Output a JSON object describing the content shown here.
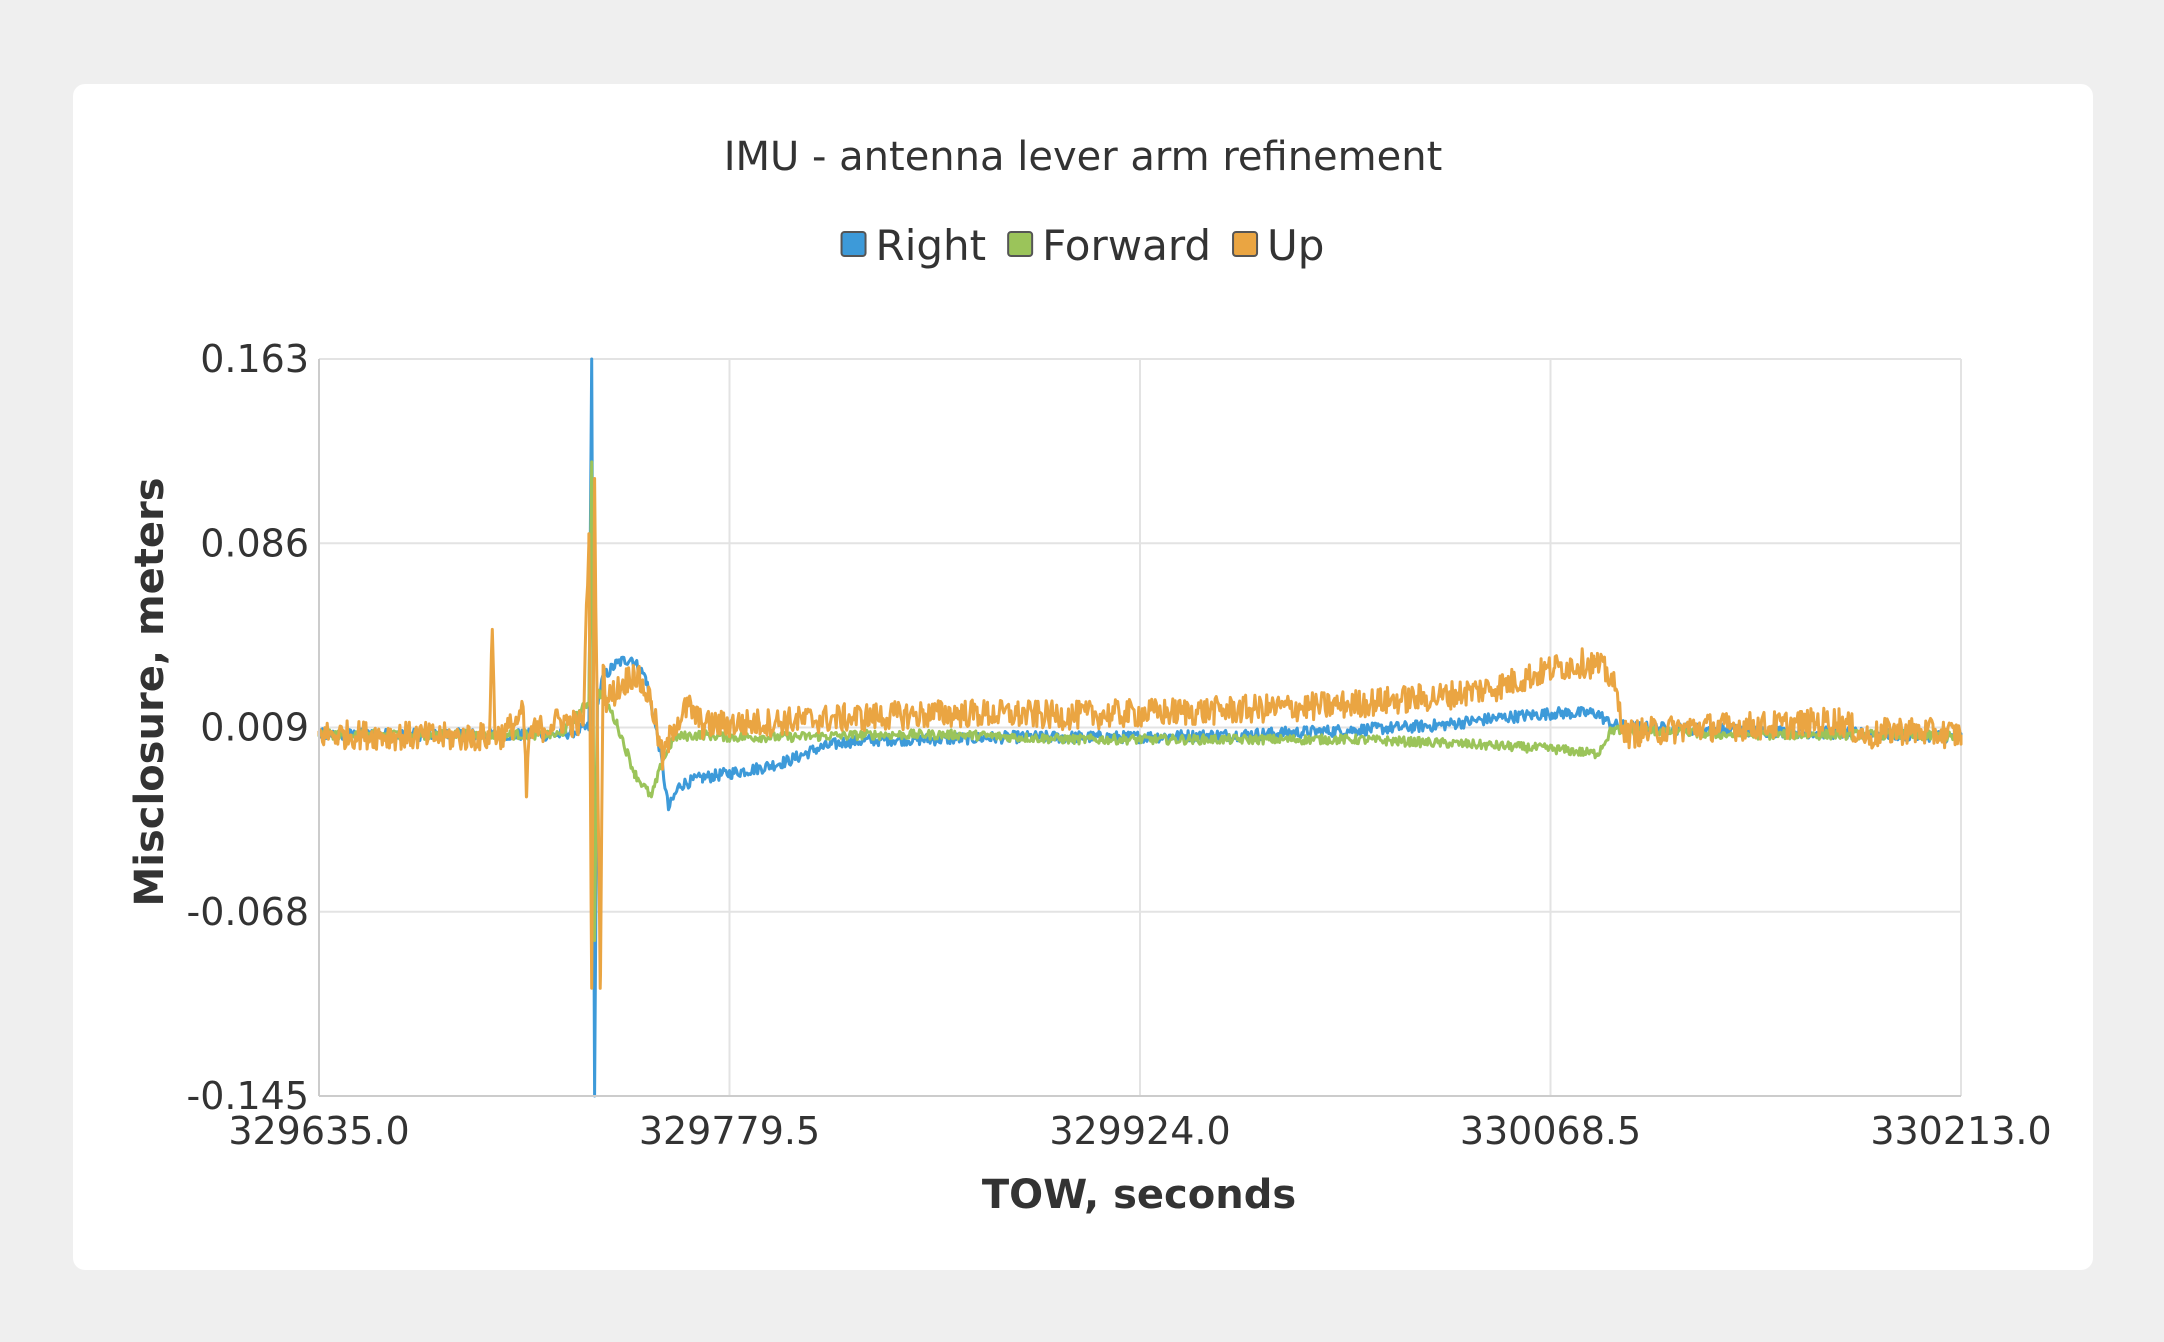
{
  "chart_data": {
    "type": "line",
    "title": "IMU - antenna lever arm refinement",
    "xlabel": "TOW, seconds",
    "ylabel": "Misclosure, meters",
    "xlim": [
      329635.0,
      330213.0
    ],
    "ylim": [
      -0.145,
      0.163
    ],
    "x_ticks": [
      "329635.0",
      "329779.5",
      "329924.0",
      "330068.5",
      "330213.0"
    ],
    "y_ticks": [
      "0.163",
      "0.086",
      "0.009",
      "-0.068",
      "-0.145"
    ],
    "grid": true,
    "legend_position": "top",
    "series": [
      {
        "name": "Right",
        "color": "#3d9ad9",
        "x": [
          329635,
          329660,
          329690,
          329720,
          329730,
          329731,
          329732,
          329733,
          329735,
          329740,
          329745,
          329750,
          329755,
          329758,
          329762,
          329770,
          329780,
          329790,
          329800,
          329810,
          329820,
          329835,
          329850,
          329880,
          329920,
          329960,
          330000,
          330030,
          330050,
          330070,
          330085,
          330090,
          330100,
          330130,
          330160,
          330190,
          330213
        ],
        "y": [
          0.006,
          0.006,
          0.006,
          0.006,
          0.009,
          0.163,
          -0.145,
          0.02,
          0.03,
          0.036,
          0.038,
          0.03,
          0.0,
          -0.025,
          -0.015,
          -0.012,
          -0.01,
          -0.008,
          -0.005,
          0.0,
          0.003,
          0.004,
          0.004,
          0.005,
          0.005,
          0.006,
          0.008,
          0.01,
          0.013,
          0.015,
          0.015,
          0.01,
          0.009,
          0.008,
          0.007,
          0.006,
          0.005
        ]
      },
      {
        "name": "Forward",
        "color": "#9bc45a",
        "x": [
          329635,
          329660,
          329690,
          329720,
          329730,
          329731,
          329732,
          329733,
          329736,
          329740,
          329746,
          329752,
          329756,
          329760,
          329770,
          329780,
          329800,
          329830,
          329860,
          329900,
          329950,
          330000,
          330040,
          330070,
          330085,
          330090,
          330100,
          330130,
          330160,
          330190,
          330213
        ],
        "y": [
          0.006,
          0.006,
          0.006,
          0.006,
          0.02,
          0.12,
          -0.08,
          0.025,
          0.02,
          0.01,
          -0.01,
          -0.02,
          -0.005,
          0.005,
          0.006,
          0.005,
          0.005,
          0.006,
          0.006,
          0.004,
          0.004,
          0.004,
          0.002,
          0.0,
          -0.002,
          0.008,
          0.008,
          0.006,
          0.006,
          0.006,
          0.005
        ]
      },
      {
        "name": "Up",
        "color": "#eaa542",
        "x": [
          329635,
          329650,
          329680,
          329695,
          329696,
          329697,
          329700,
          329707,
          329708,
          329709,
          329712,
          329720,
          329728,
          329730,
          329731,
          329732,
          329734,
          329735,
          329736,
          329740,
          329746,
          329752,
          329756,
          329760,
          329765,
          329770,
          329790,
          329820,
          329860,
          329900,
          329950,
          329990,
          330030,
          330050,
          330060,
          330070,
          330080,
          330085,
          330090,
          330095,
          330100,
          330120,
          330150,
          330170,
          330180,
          330190,
          330200,
          330213
        ],
        "y": [
          0.006,
          0.006,
          0.005,
          0.005,
          0.05,
          0.006,
          0.006,
          0.015,
          -0.02,
          0.006,
          0.008,
          0.012,
          0.01,
          0.09,
          -0.1,
          0.11,
          -0.1,
          0.035,
          0.02,
          0.025,
          0.032,
          0.02,
          -0.005,
          0.01,
          0.018,
          0.01,
          0.011,
          0.013,
          0.015,
          0.014,
          0.016,
          0.018,
          0.022,
          0.026,
          0.03,
          0.034,
          0.036,
          0.035,
          0.03,
          0.006,
          0.007,
          0.009,
          0.01,
          0.012,
          0.005,
          0.008,
          0.007,
          0.006
        ]
      }
    ]
  }
}
